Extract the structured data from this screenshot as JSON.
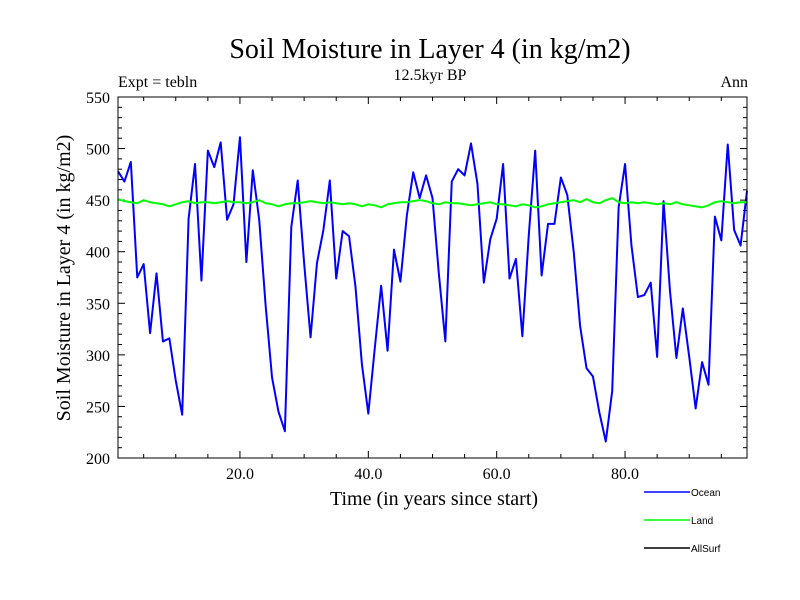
{
  "chart_data": {
    "type": "line",
    "title": "Soil Moisture in Layer 4 (in kg/m2)",
    "subtitle": "12.5kyr BP",
    "left_label": "Expt = tebln",
    "right_label": "Ann",
    "xlabel": "Time (in years since start)",
    "ylabel": "Soil Moisture in Layer 4 (in kg/m2)",
    "xlim": [
      1,
      99
    ],
    "ylim": [
      200,
      550
    ],
    "x_ticks": [
      20,
      40,
      60,
      80
    ],
    "x_tick_labels": [
      "20.0",
      "40.0",
      "60.0",
      "80.0"
    ],
    "y_ticks": [
      200,
      250,
      300,
      350,
      400,
      450,
      500,
      550
    ],
    "y_tick_labels": [
      "200",
      "250",
      "300",
      "350",
      "400",
      "450",
      "500",
      "550"
    ],
    "x_start": 1,
    "series": [
      {
        "name": "Ocean",
        "color": "#0000ff",
        "values": [
          478,
          468,
          487,
          375,
          388,
          321,
          379,
          313,
          316,
          275,
          242,
          432,
          485,
          372,
          498,
          482,
          506,
          431,
          446,
          511,
          390,
          479,
          431,
          348,
          278,
          245,
          226,
          424,
          469,
          389,
          317,
          389,
          421,
          469,
          374,
          420,
          415,
          366,
          291,
          243,
          306,
          367,
          304,
          402,
          371,
          435,
          477,
          452,
          474,
          452,
          378,
          313,
          468,
          480,
          474,
          505,
          466,
          370,
          412,
          432,
          485,
          374,
          393,
          318,
          416,
          498,
          377,
          427,
          427,
          472,
          455,
          400,
          328,
          287,
          279,
          244,
          216,
          265,
          443,
          485,
          406,
          356,
          358,
          370,
          298,
          449,
          362,
          297,
          345,
          298,
          248,
          293,
          271,
          434,
          411,
          504,
          421,
          406,
          459
        ]
      },
      {
        "name": "Land",
        "color": "#00ff00",
        "values": [
          451,
          449,
          448,
          447,
          450,
          448,
          447,
          446,
          444,
          446,
          448,
          449,
          447,
          448,
          448,
          447,
          448,
          449,
          448,
          448,
          447,
          448,
          450,
          447,
          446,
          444,
          446,
          447,
          447,
          448,
          449,
          448,
          447,
          448,
          447,
          446,
          447,
          446,
          444,
          446,
          445,
          443,
          446,
          447,
          448,
          448,
          449,
          450,
          449,
          447,
          446,
          448,
          447,
          447,
          446,
          445,
          446,
          447,
          448,
          446,
          446,
          445,
          444,
          446,
          445,
          443,
          444,
          446,
          447,
          448,
          449,
          450,
          448,
          451,
          448,
          447,
          450,
          452,
          448,
          447,
          448,
          447,
          448,
          447,
          446,
          447,
          446,
          448,
          446,
          445,
          444,
          443,
          445,
          448,
          449,
          448,
          447,
          448,
          448
        ]
      },
      {
        "name": "AllSurf",
        "color": "#000000",
        "values": []
      }
    ],
    "legend_position": "bottom-right"
  }
}
